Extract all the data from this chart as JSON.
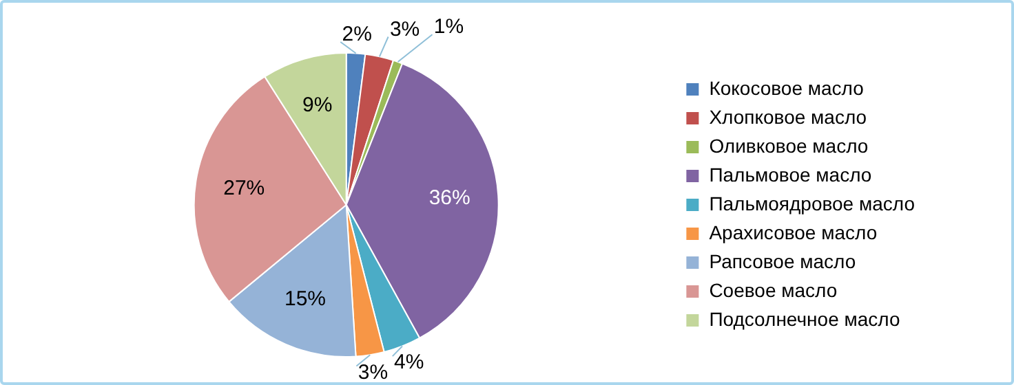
{
  "chart_data": {
    "type": "pie",
    "categories": [
      "Кокосовое масло",
      "Хлопковое масло",
      "Оливковое масло",
      "Пальмовое масло",
      "Пальмоядровое масло",
      "Арахисовое масло",
      "Рапсовое масло",
      "Соевое масло",
      "Подсолнечное масло"
    ],
    "values": [
      2,
      3,
      1,
      36,
      4,
      3,
      15,
      27,
      9
    ],
    "colors": [
      "#4f81bd",
      "#c0504d",
      "#9bbb59",
      "#8064a2",
      "#4bacc6",
      "#f79646",
      "#95b3d7",
      "#d99694",
      "#c3d69b"
    ],
    "value_labels": [
      "2%",
      "3%",
      "1%",
      "36%",
      "4%",
      "3%",
      "15%",
      "27%",
      "9%"
    ],
    "legend": "right"
  }
}
